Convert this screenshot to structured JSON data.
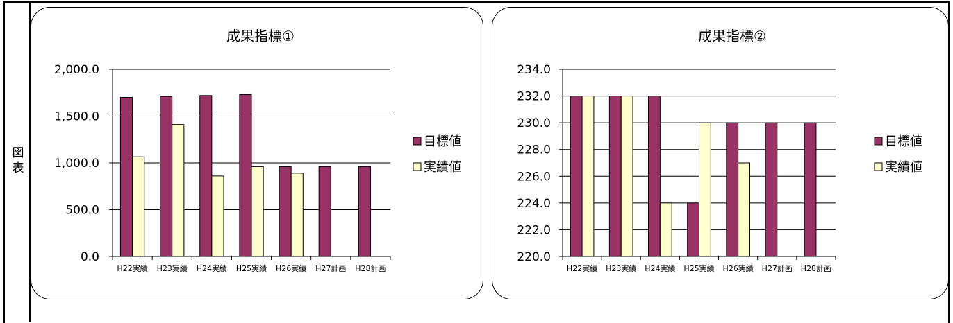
{
  "side_label": [
    "図",
    "表"
  ],
  "colors": {
    "target": "#993366",
    "actual": "#ffffcc",
    "grid": "#000000"
  },
  "chart_data": [
    {
      "type": "bar",
      "title": "成果指標①",
      "categories": [
        "H22実績",
        "H23実績",
        "H24実績",
        "H25実績",
        "H26実績",
        "H27計画",
        "H28計画"
      ],
      "ylim": [
        0,
        2000
      ],
      "yticks": [
        0,
        500,
        1000,
        1500,
        2000
      ],
      "ytick_labels": [
        "0.0",
        "500.0",
        "1,000.0",
        "1,500.0",
        "2,000.0"
      ],
      "grid": true,
      "legend_position": "right",
      "series": [
        {
          "name": "目標値",
          "values": [
            1700,
            1710,
            1720,
            1730,
            960,
            960,
            960
          ]
        },
        {
          "name": "実績値",
          "values": [
            1065,
            1410,
            860,
            960,
            890,
            null,
            null
          ]
        }
      ]
    },
    {
      "type": "bar",
      "title": "成果指標②",
      "categories": [
        "H22実績",
        "H23実績",
        "H24実績",
        "H25実績",
        "H26実績",
        "H27計画",
        "H28計画"
      ],
      "ylim": [
        220,
        234
      ],
      "yticks": [
        220,
        222,
        224,
        226,
        228,
        230,
        232,
        234
      ],
      "ytick_labels": [
        "220.0",
        "222.0",
        "224.0",
        "226.0",
        "228.0",
        "230.0",
        "232.0",
        "234.0"
      ],
      "grid": true,
      "legend_position": "right",
      "series": [
        {
          "name": "目標値",
          "values": [
            232,
            232,
            232,
            224,
            230,
            230,
            230
          ]
        },
        {
          "name": "実績値",
          "values": [
            232,
            232,
            224,
            230,
            227,
            null,
            null
          ]
        }
      ]
    }
  ]
}
